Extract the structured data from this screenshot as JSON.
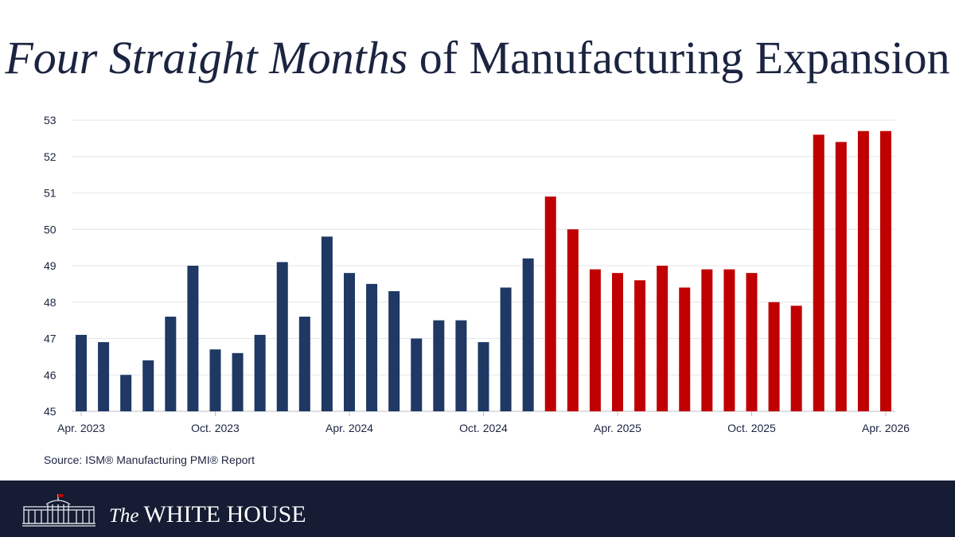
{
  "title": {
    "italic": "Four Straight Months",
    "rest": "of Manufacturing Expansion"
  },
  "chart_data": {
    "type": "bar",
    "title": "Four Straight Months of Manufacturing Expansion",
    "xlabel": "",
    "ylabel": "",
    "ylim": [
      45,
      53
    ],
    "yticks": [
      45,
      46,
      47,
      48,
      49,
      50,
      51,
      52,
      53
    ],
    "grid": true,
    "legend": "none",
    "colors": {
      "before": "#1f3864",
      "after": "#c00000"
    },
    "categories": [
      "Apr. 2023",
      "May 2023",
      "Jun. 2023",
      "Jul. 2023",
      "Aug. 2023",
      "Sep. 2023",
      "Oct. 2023",
      "Nov. 2023",
      "Dec. 2023",
      "Jan. 2024",
      "Feb. 2024",
      "Mar. 2024",
      "Apr. 2024",
      "May 2024",
      "Jun. 2024",
      "Jul. 2024",
      "Aug. 2024",
      "Sep. 2024",
      "Oct. 2024",
      "Nov. 2024",
      "Dec. 2024",
      "Jan. 2025",
      "Feb. 2025",
      "Mar. 2025",
      "Apr. 2025",
      "May 2025",
      "Jun. 2025",
      "Jul. 2025",
      "Aug. 2025",
      "Sep. 2025",
      "Oct. 2025",
      "Nov. 2025",
      "Dec. 2025",
      "Jan. 2026",
      "Feb. 2026",
      "Mar. 2026",
      "Apr. 2026"
    ],
    "values": [
      47.1,
      46.9,
      46.0,
      46.4,
      47.6,
      49.0,
      46.7,
      46.6,
      47.1,
      49.1,
      47.6,
      49.8,
      48.8,
      48.5,
      48.3,
      47.0,
      47.5,
      47.5,
      46.9,
      48.4,
      49.2,
      50.9,
      50.0,
      48.9,
      48.8,
      48.6,
      49.0,
      48.4,
      48.9,
      48.9,
      48.8,
      48.0,
      47.9,
      52.6,
      52.4,
      52.7,
      52.7
    ],
    "red_from_index": 21,
    "xtick_labels": [
      "Apr. 2023",
      "Oct. 2023",
      "Apr. 2024",
      "Oct. 2024",
      "Apr. 2025",
      "Oct. 2025",
      "Apr. 2026"
    ],
    "xtick_indices": [
      0,
      6,
      12,
      18,
      24,
      30,
      36
    ]
  },
  "source": "Source: ISM® Manufacturing PMI® Report",
  "footer": {
    "brand_the": "The",
    "brand_name": "WHITE HOUSE",
    "logo_icon": "white-house-building-icon"
  }
}
